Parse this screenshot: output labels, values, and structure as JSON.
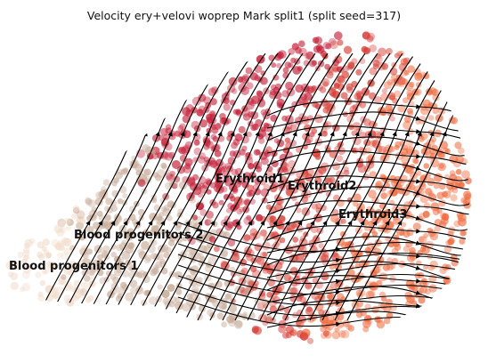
{
  "chart_data": {
    "type": "scatter",
    "title": "Velocity ery+velovi woprep Mark split1 (split seed=317)",
    "xlabel": "",
    "ylabel": "",
    "axes_visible": false,
    "grid": false,
    "overlay": "velocity-streamlines",
    "clusters": [
      {
        "label": "Blood progenitors 1",
        "color": "#f1dccb"
      },
      {
        "label": "Blood progenitors 2",
        "color": "#c9ad9a"
      },
      {
        "label": "Erythroid1",
        "color": "#c42038"
      },
      {
        "label": "Erythroid2",
        "color": "#d8423a"
      },
      {
        "label": "Erythroid3",
        "color": "#ef6a3e"
      }
    ]
  }
}
